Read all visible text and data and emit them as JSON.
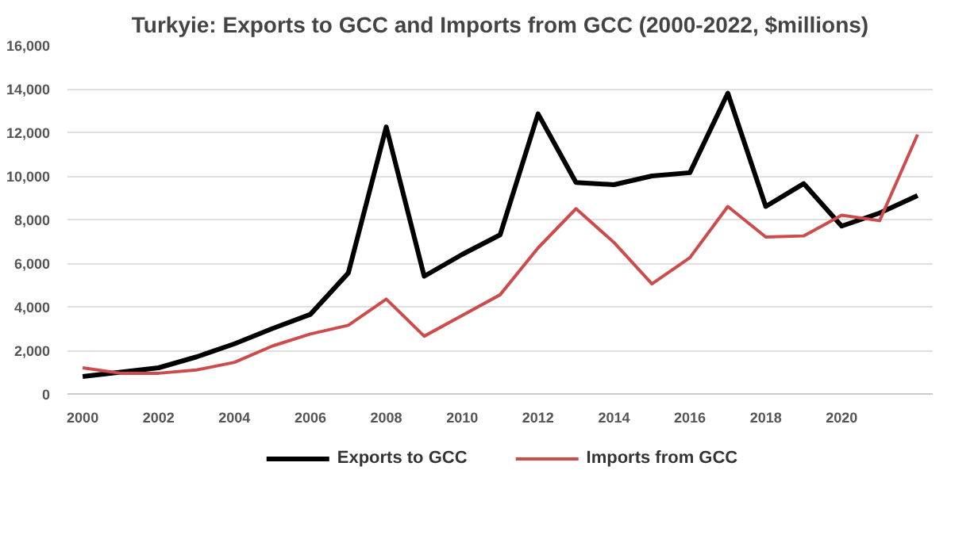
{
  "chart_data": {
    "type": "line",
    "title": "Turkyie: Exports to GCC and Imports from GCC (2000-2022, $millions)",
    "x": [
      2000,
      2001,
      2002,
      2003,
      2004,
      2005,
      2006,
      2007,
      2008,
      2009,
      2010,
      2011,
      2012,
      2013,
      2014,
      2015,
      2016,
      2017,
      2018,
      2019,
      2020,
      2021,
      2022
    ],
    "series": [
      {
        "name": "Exports to GCC",
        "color": "#000000",
        "values": [
          800,
          1000,
          1200,
          1700,
          2300,
          3000,
          3650,
          5550,
          12250,
          5400,
          6400,
          7300,
          12850,
          9700,
          9600,
          10000,
          10150,
          13800,
          8600,
          9650,
          7700,
          8300,
          9100
        ]
      },
      {
        "name": "Imports from GCC",
        "color": "#cc4b4b",
        "values": [
          1200,
          950,
          950,
          1100,
          1450,
          2200,
          2750,
          3150,
          4350,
          2650,
          3600,
          4550,
          6700,
          8500,
          6950,
          5050,
          6250,
          8600,
          7200,
          7250,
          8200,
          7950,
          11900
        ]
      }
    ],
    "xlim": [
      1999.6,
      2022.4
    ],
    "xticks": [
      2000,
      2002,
      2004,
      2006,
      2008,
      2010,
      2012,
      2014,
      2016,
      2018,
      2020
    ],
    "ylim": [
      0,
      16000
    ],
    "yticks": [
      {
        "value": 0,
        "label": "0"
      },
      {
        "value": 2000,
        "label": "2,000"
      },
      {
        "value": 4000,
        "label": "4,000"
      },
      {
        "value": 6000,
        "label": "6,000"
      },
      {
        "value": 8000,
        "label": "8,000"
      },
      {
        "value": 10000,
        "label": "10,000"
      },
      {
        "value": 12000,
        "label": "12,000"
      },
      {
        "value": 14000,
        "label": "14,000"
      },
      {
        "value": 16000,
        "label": "16,000"
      }
    ],
    "grid": "y",
    "legend": "bottom",
    "marker": "none",
    "line_style": "solid"
  }
}
